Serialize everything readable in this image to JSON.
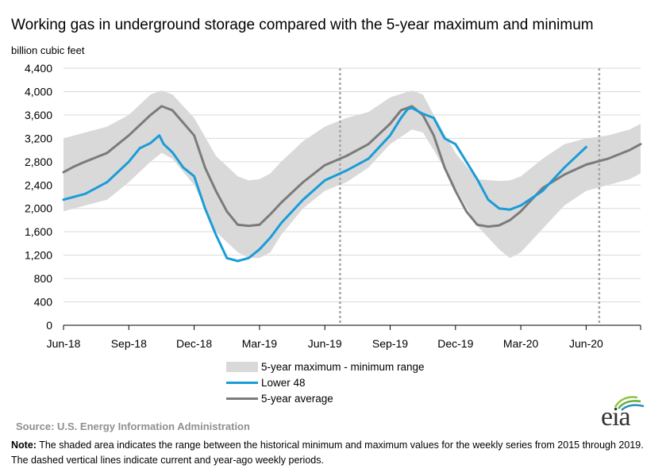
{
  "title": "Working gas in underground  storage compared with the 5-year maximum and minimum",
  "y_unit_label": "billion cubic feet",
  "legend": {
    "band": "5-year maximum - minimum range",
    "lower48": "Lower 48",
    "average": "5-year average"
  },
  "source": "Source:  U.S. Energy Information Administration",
  "note_label": "Note:",
  "note_text": " The shaded area indicates the range between the historical minimum and maximum values for the weekly series from 2015 through 2019. The dashed vertical lines indicate current and year-ago weekly periods.",
  "logo": "eia",
  "colors": {
    "band": "#d9d9d9",
    "lower48": "#1a9cd8",
    "average": "#7b7b7b",
    "dashed": "#a6a6a6"
  },
  "chart_data": {
    "type": "area",
    "title": "Working gas in underground  storage compared with the 5-year maximum and minimum",
    "ylabel": "billion cubic feet",
    "ylim": [
      0,
      4400
    ],
    "yticks": [
      0,
      400,
      800,
      1200,
      1600,
      2000,
      2400,
      2800,
      3200,
      3600,
      4000,
      4400
    ],
    "xtick_labels": [
      "Jun-18",
      "Sep-18",
      "Dec-18",
      "Mar-19",
      "Jun-19",
      "Sep-19",
      "Dec-19",
      "Mar-20",
      "Jun-20"
    ],
    "xlim_months": [
      0,
      26.5
    ],
    "x_unit": "months since Jun-18",
    "dashed_lines_months": [
      12.7,
      24.6
    ],
    "grid": "horizontal",
    "legend_position": "bottom",
    "series": [
      {
        "name": "5-year maximum - minimum range",
        "kind": "band",
        "x": [
          0,
          1,
          2,
          3,
          4,
          4.5,
          5,
          6,
          7,
          8,
          8.5,
          9,
          9.5,
          10,
          11,
          12,
          13,
          14,
          15,
          16,
          16.5,
          17,
          18,
          19,
          20,
          20.5,
          21,
          22,
          23,
          24,
          25,
          26,
          26.5
        ],
        "high": [
          3200,
          3300,
          3400,
          3600,
          3950,
          4020,
          3950,
          3550,
          2900,
          2550,
          2480,
          2500,
          2600,
          2800,
          3150,
          3400,
          3550,
          3650,
          3900,
          4020,
          3950,
          3600,
          2950,
          2500,
          2470,
          2480,
          2550,
          2850,
          3100,
          3200,
          3250,
          3350,
          3450
        ],
        "low": [
          1950,
          2050,
          2150,
          2450,
          2800,
          2950,
          2850,
          2400,
          1600,
          1250,
          1150,
          1150,
          1250,
          1550,
          2000,
          2300,
          2450,
          2700,
          3100,
          3350,
          3300,
          3000,
          2350,
          1700,
          1300,
          1150,
          1250,
          1650,
          2050,
          2300,
          2400,
          2500,
          2600
        ]
      },
      {
        "name": "5-year average",
        "kind": "line",
        "x": [
          0,
          0.5,
          1,
          2,
          3,
          4,
          4.5,
          5,
          6,
          6.5,
          7,
          7.5,
          8,
          8.5,
          9,
          9.5,
          10,
          11,
          12,
          13,
          14,
          15,
          15.5,
          16,
          16.5,
          17,
          17.5,
          18,
          18.5,
          19,
          19.5,
          20,
          20.5,
          21,
          22,
          23,
          24,
          25,
          26,
          26.5
        ],
        "values": [
          2620,
          2720,
          2800,
          2950,
          3250,
          3600,
          3750,
          3680,
          3250,
          2700,
          2300,
          1950,
          1720,
          1700,
          1720,
          1900,
          2100,
          2450,
          2740,
          2900,
          3100,
          3450,
          3680,
          3750,
          3600,
          3250,
          2700,
          2300,
          1950,
          1720,
          1690,
          1710,
          1800,
          1950,
          2350,
          2580,
          2750,
          2850,
          3000,
          3100
        ]
      },
      {
        "name": "Lower 48",
        "kind": "line",
        "x": [
          0,
          1,
          2,
          3,
          3.5,
          4,
          4.4,
          4.6,
          5,
          5.5,
          6,
          6.5,
          7,
          7.5,
          8,
          8.5,
          9,
          9.5,
          10,
          11,
          12,
          13,
          14,
          15,
          15.5,
          15.8,
          16,
          16.5,
          17,
          17.5,
          18,
          18.5,
          19,
          19.5,
          20,
          20.5,
          21,
          22,
          23,
          24
        ],
        "values": [
          2150,
          2250,
          2450,
          2800,
          3030,
          3120,
          3250,
          3100,
          2960,
          2700,
          2550,
          2000,
          1550,
          1150,
          1100,
          1150,
          1300,
          1500,
          1750,
          2150,
          2480,
          2650,
          2850,
          3250,
          3550,
          3700,
          3720,
          3620,
          3550,
          3200,
          3100,
          2800,
          2500,
          2150,
          2000,
          1980,
          2050,
          2300,
          2700,
          3050
        ]
      }
    ]
  }
}
